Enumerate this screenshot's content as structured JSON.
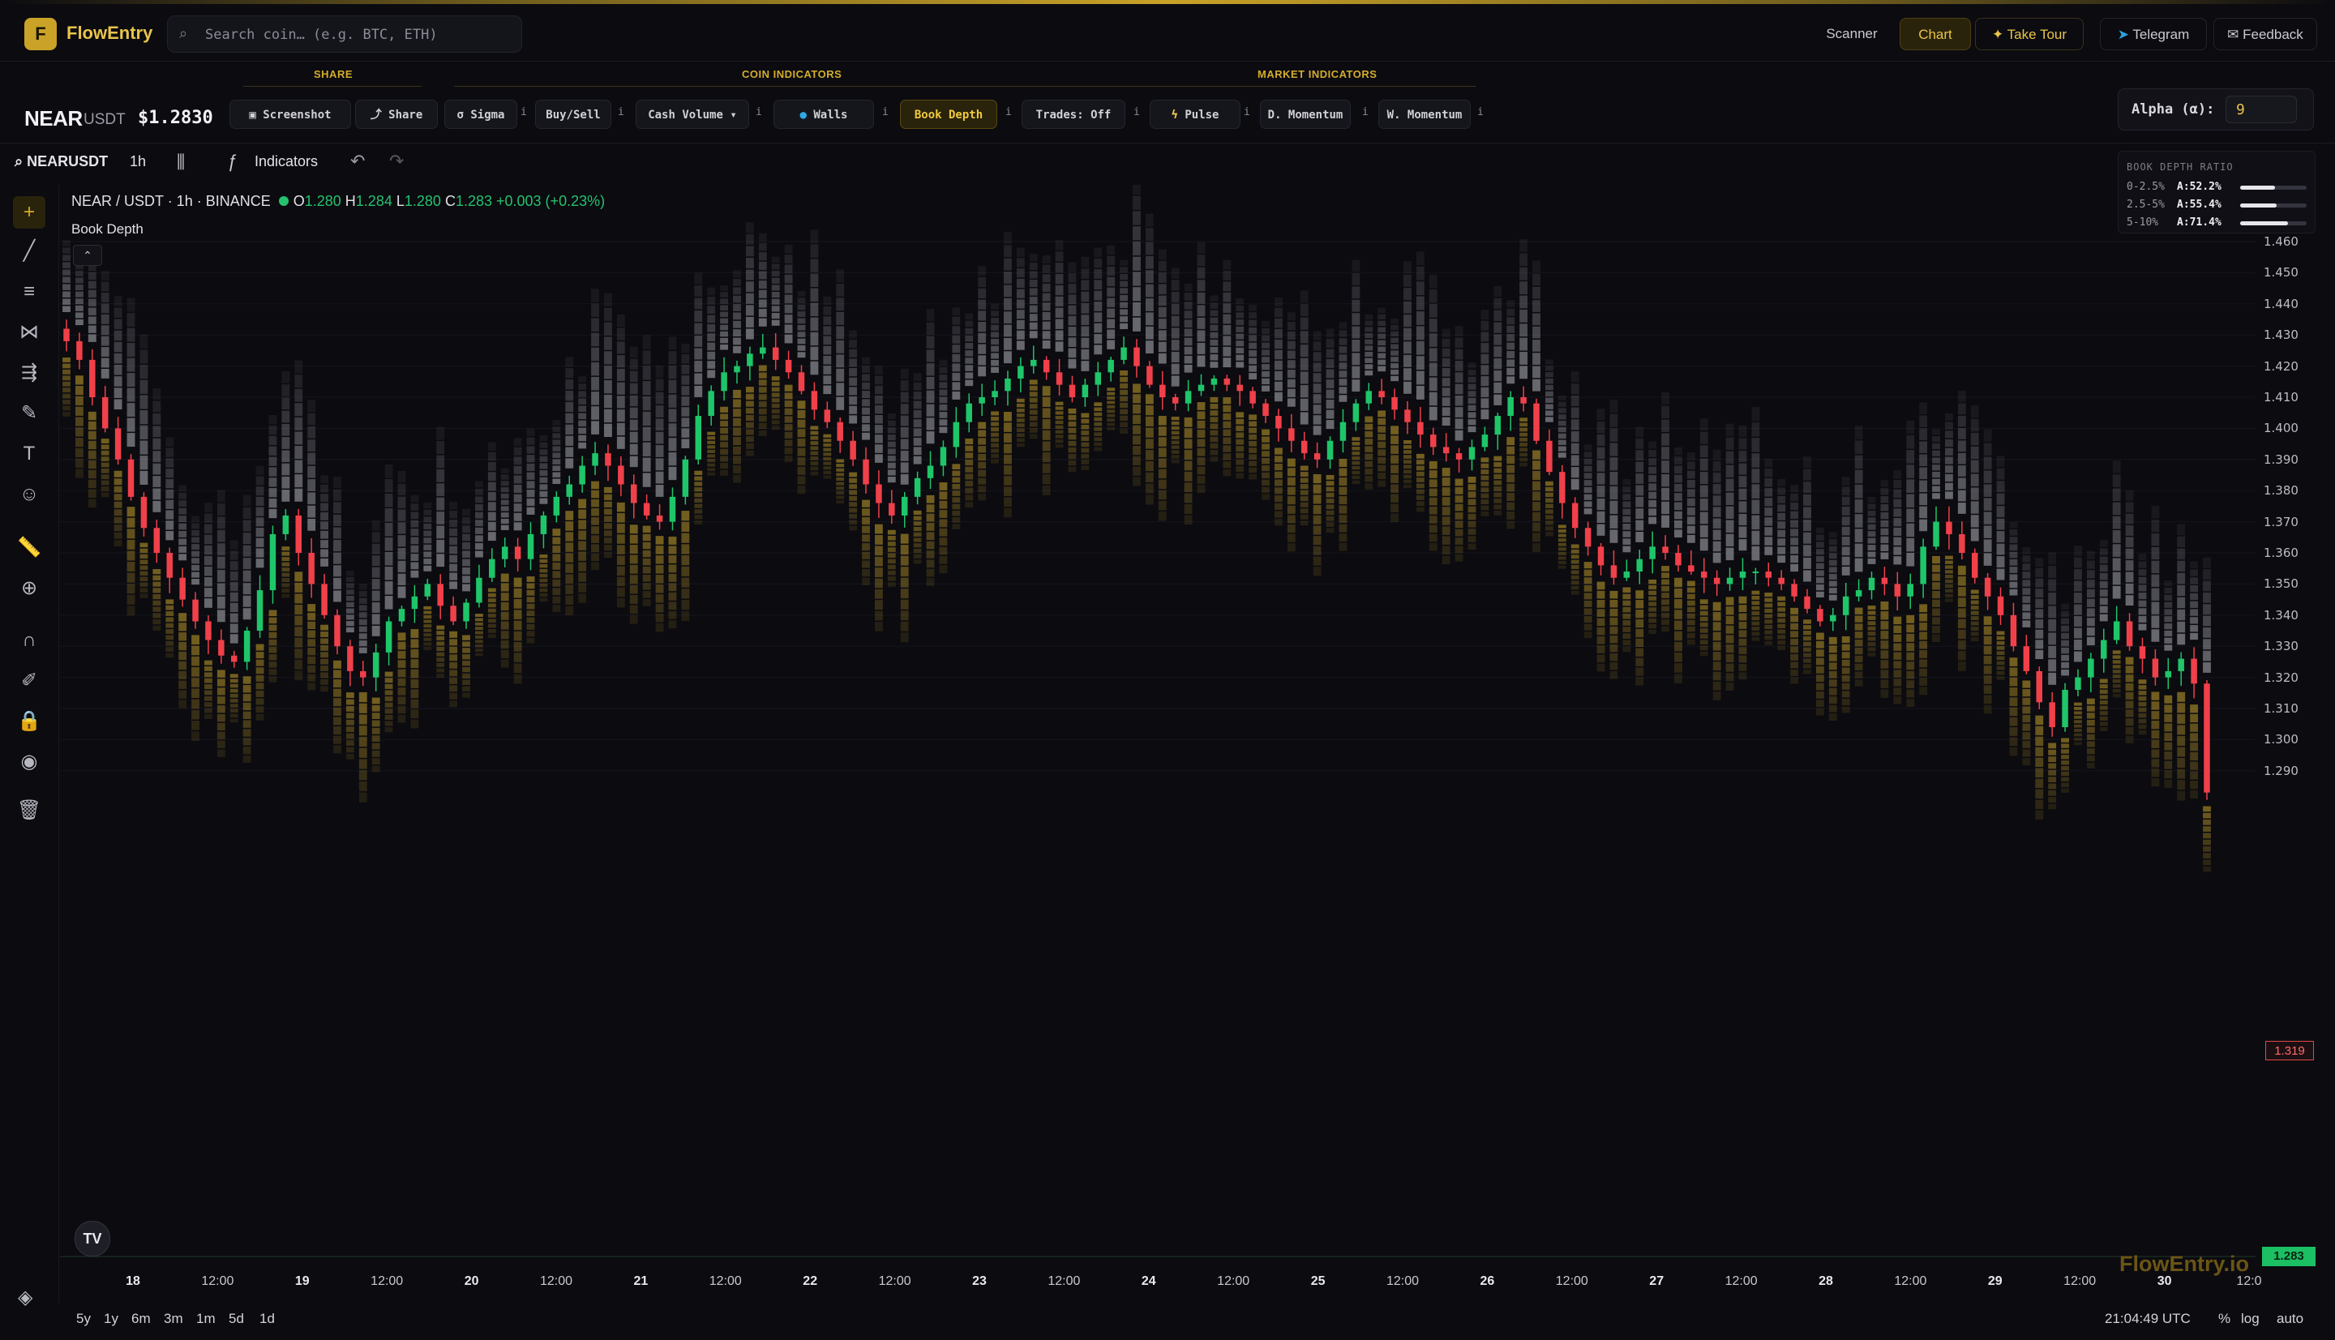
{
  "app": {
    "brand": "FlowEntry",
    "logo_letter": "F",
    "accent": "#c9a227",
    "search_placeholder": "Search coin… (e.g. BTC, ETH)"
  },
  "nav": {
    "scanner": "Scanner",
    "chart": "Chart",
    "take_tour": "Take Tour",
    "telegram": "Telegram",
    "feedback": "Feedback"
  },
  "groups": {
    "share": "SHARE",
    "coin": "COIN INDICATORS",
    "market": "MARKET INDICATORS"
  },
  "symbol": {
    "base": "NEAR",
    "quote": "USDT",
    "price": "$1.2830"
  },
  "chips": {
    "screenshot": "Screenshot",
    "share": "Share",
    "sigma": "σ Sigma",
    "buysell": "Buy/Sell",
    "cash_volume": "Cash Volume",
    "walls": "Walls",
    "book_depth": "Book Depth",
    "trades": "Trades: Off",
    "pulse": "Pulse",
    "d_momentum": "D. Momentum",
    "w_momentum": "W. Momentum",
    "info": "i"
  },
  "alpha": {
    "label": "Alpha (α):",
    "value": "9"
  },
  "toolbar": {
    "symbol": "NEARUSDT",
    "timeframe": "1h",
    "indicators": "Indicators"
  },
  "legend": {
    "title": "NEAR / USDT · 1h · BINANCE",
    "o_label": "O",
    "o": "1.280",
    "h_label": "H",
    "h": "1.284",
    "l_label": "L",
    "l": "1.280",
    "c_label": "C",
    "c": "1.283",
    "change": "+0.003 (+0.23%)",
    "study": "Book Depth"
  },
  "ratio_panel": {
    "title": "BOOK DEPTH RATIO",
    "rows": [
      {
        "label": "0-2.5%",
        "value": "A:52.2%",
        "fraction": 0.522
      },
      {
        "label": "2.5-5%",
        "value": "A:55.4%",
        "fraction": 0.554
      },
      {
        "label": "5-10%",
        "value": "A:71.4%",
        "fraction": 0.714
      }
    ]
  },
  "price_axis": {
    "ticks": [
      "1.460",
      "1.450",
      "1.440",
      "1.430",
      "1.420",
      "1.410",
      "1.400",
      "1.390",
      "1.380",
      "1.370",
      "1.360",
      "1.350",
      "1.340",
      "1.330",
      "1.320",
      "1.310",
      "1.300",
      "1.290"
    ],
    "current_tag": "1.319",
    "last_tag": "1.283"
  },
  "time_axis": [
    {
      "label": "18",
      "day": true
    },
    {
      "label": "12:00",
      "day": false
    },
    {
      "label": "19",
      "day": true
    },
    {
      "label": "12:00",
      "day": false
    },
    {
      "label": "20",
      "day": true
    },
    {
      "label": "12:00",
      "day": false
    },
    {
      "label": "21",
      "day": true
    },
    {
      "label": "12:00",
      "day": false
    },
    {
      "label": "22",
      "day": true
    },
    {
      "label": "12:00",
      "day": false
    },
    {
      "label": "23",
      "day": true
    },
    {
      "label": "12:00",
      "day": false
    },
    {
      "label": "24",
      "day": true
    },
    {
      "label": "12:00",
      "day": false
    },
    {
      "label": "25",
      "day": true
    },
    {
      "label": "12:00",
      "day": false
    },
    {
      "label": "26",
      "day": true
    },
    {
      "label": "12:00",
      "day": false
    },
    {
      "label": "27",
      "day": true
    },
    {
      "label": "12:00",
      "day": false
    },
    {
      "label": "28",
      "day": true
    },
    {
      "label": "12:00",
      "day": false
    },
    {
      "label": "29",
      "day": true
    },
    {
      "label": "12:00",
      "day": false
    },
    {
      "label": "30",
      "day": true
    },
    {
      "label": "12:0",
      "day": false
    }
  ],
  "watermark": "FlowEntry.io",
  "ranges": [
    "5y",
    "1y",
    "6m",
    "3m",
    "1m",
    "5d",
    "1d"
  ],
  "footer": {
    "clock": "21:04:49 UTC",
    "pct": "%",
    "log": "log",
    "auto": "auto"
  },
  "colors": {
    "up": "#1fc569",
    "down": "#f0404a",
    "ask_depth": "#b9b9c2",
    "bid_depth": "#b8962a"
  },
  "price_path": [
    1.428,
    1.422,
    1.41,
    1.4,
    1.39,
    1.378,
    1.368,
    1.36,
    1.352,
    1.345,
    1.338,
    1.332,
    1.327,
    1.325,
    1.335,
    1.348,
    1.366,
    1.372,
    1.36,
    1.35,
    1.34,
    1.33,
    1.322,
    1.32,
    1.328,
    1.338,
    1.342,
    1.346,
    1.35,
    1.343,
    1.338,
    1.344,
    1.352,
    1.358,
    1.362,
    1.358,
    1.366,
    1.372,
    1.378,
    1.382,
    1.388,
    1.392,
    1.388,
    1.382,
    1.376,
    1.372,
    1.37,
    1.378,
    1.39,
    1.404,
    1.412,
    1.418,
    1.42,
    1.424,
    1.426,
    1.422,
    1.418,
    1.412,
    1.406,
    1.402,
    1.396,
    1.39,
    1.382,
    1.376,
    1.372,
    1.378,
    1.384,
    1.388,
    1.394,
    1.402,
    1.408,
    1.41,
    1.412,
    1.416,
    1.42,
    1.422,
    1.418,
    1.414,
    1.41,
    1.414,
    1.418,
    1.422,
    1.426,
    1.42,
    1.414,
    1.41,
    1.408,
    1.412,
    1.414,
    1.416,
    1.414,
    1.412,
    1.408,
    1.404,
    1.4,
    1.396,
    1.392,
    1.39,
    1.396,
    1.402,
    1.408,
    1.412,
    1.41,
    1.406,
    1.402,
    1.398,
    1.394,
    1.392,
    1.39,
    1.394,
    1.398,
    1.404,
    1.41,
    1.408,
    1.396,
    1.386,
    1.376,
    1.368,
    1.362,
    1.356,
    1.352,
    1.354,
    1.358,
    1.362,
    1.36,
    1.356,
    1.354,
    1.352,
    1.35,
    1.352,
    1.354,
    1.354,
    1.352,
    1.35,
    1.346,
    1.342,
    1.338,
    1.34,
    1.346,
    1.348,
    1.352,
    1.35,
    1.346,
    1.35,
    1.362,
    1.37,
    1.366,
    1.36,
    1.352,
    1.346,
    1.34,
    1.33,
    1.322,
    1.312,
    1.304,
    1.316,
    1.32,
    1.326,
    1.332,
    1.338,
    1.33,
    1.326,
    1.32,
    1.322,
    1.326,
    1.318,
    1.283
  ]
}
